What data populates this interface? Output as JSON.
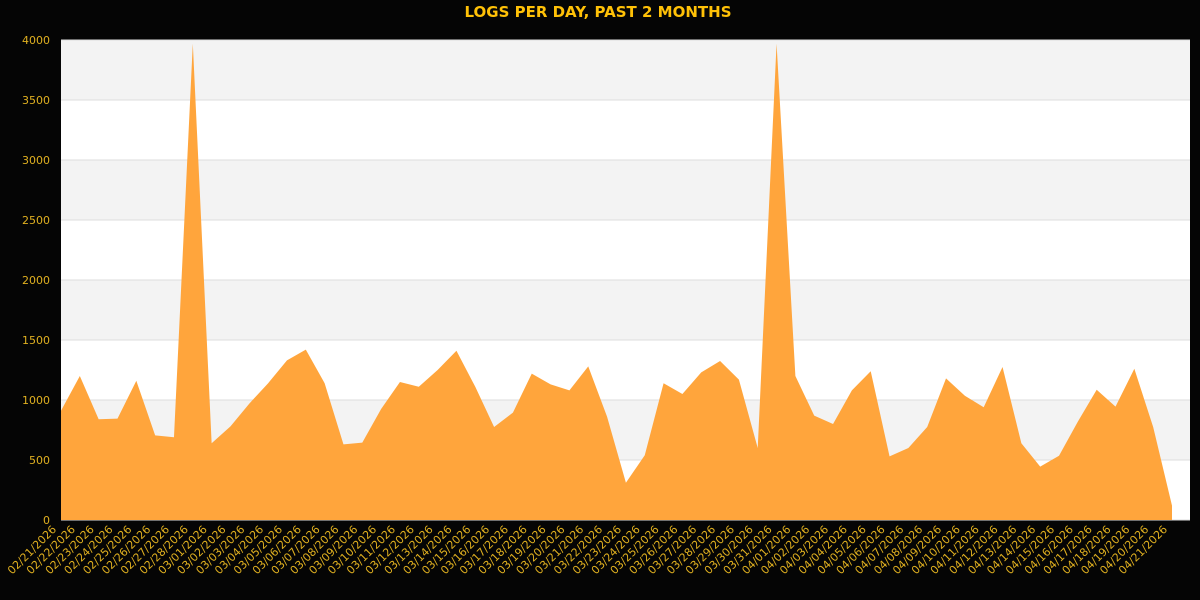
{
  "chart_data": {
    "type": "area",
    "title": "LOGS PER DAY, PAST 2 MONTHS",
    "xlabel": "",
    "ylabel": "",
    "ylim": [
      0,
      4000
    ],
    "yticks": [
      0,
      500,
      1000,
      1500,
      2000,
      2500,
      3000,
      3500,
      4000
    ],
    "grid": true,
    "legend": "none",
    "x": [
      "02/21/2026",
      "02/22/2026",
      "02/23/2026",
      "02/24/2026",
      "02/25/2026",
      "02/26/2026",
      "02/27/2026",
      "02/28/2026",
      "03/01/2026",
      "03/02/2026",
      "03/03/2026",
      "03/04/2026",
      "03/05/2026",
      "03/06/2026",
      "03/07/2026",
      "03/08/2026",
      "03/09/2026",
      "03/10/2026",
      "03/11/2026",
      "03/12/2026",
      "03/13/2026",
      "03/14/2026",
      "03/15/2026",
      "03/16/2026",
      "03/17/2026",
      "03/18/2026",
      "03/19/2026",
      "03/20/2026",
      "03/21/2026",
      "03/22/2026",
      "03/23/2026",
      "03/24/2026",
      "03/25/2026",
      "03/26/2026",
      "03/27/2026",
      "03/28/2026",
      "03/29/2026",
      "03/30/2026",
      "03/31/2026",
      "04/01/2026",
      "04/02/2026",
      "04/03/2026",
      "04/04/2026",
      "04/05/2026",
      "04/06/2026",
      "04/07/2026",
      "04/08/2026",
      "04/09/2026",
      "04/10/2026",
      "04/11/2026",
      "04/12/2026",
      "04/13/2026",
      "04/14/2026",
      "04/15/2026",
      "04/16/2026",
      "04/17/2026",
      "04/18/2026",
      "04/19/2026",
      "04/20/2026",
      "04/21/2026"
    ],
    "values": [
      910,
      1200,
      840,
      845,
      1160,
      705,
      690,
      3970,
      640,
      780,
      970,
      1140,
      1330,
      1420,
      1140,
      630,
      645,
      925,
      1150,
      1110,
      1250,
      1410,
      1110,
      775,
      895,
      1220,
      1130,
      1080,
      1280,
      860,
      310,
      540,
      1140,
      1050,
      1230,
      1325,
      1170,
      600,
      3970,
      1200,
      870,
      800,
      1080,
      1240,
      530,
      600,
      775,
      1180,
      1035,
      940,
      1275,
      640,
      445,
      535,
      820,
      1085,
      945,
      1260,
      775,
      120
    ]
  },
  "colors": {
    "background": "#050505",
    "plot_band_light": "#ffffff",
    "plot_band_dark": "#f3f3f3",
    "gridline": "#dddddd",
    "area_fill": "#ffa53c",
    "title": "#ffc107",
    "tick_label": "#e0b020"
  }
}
